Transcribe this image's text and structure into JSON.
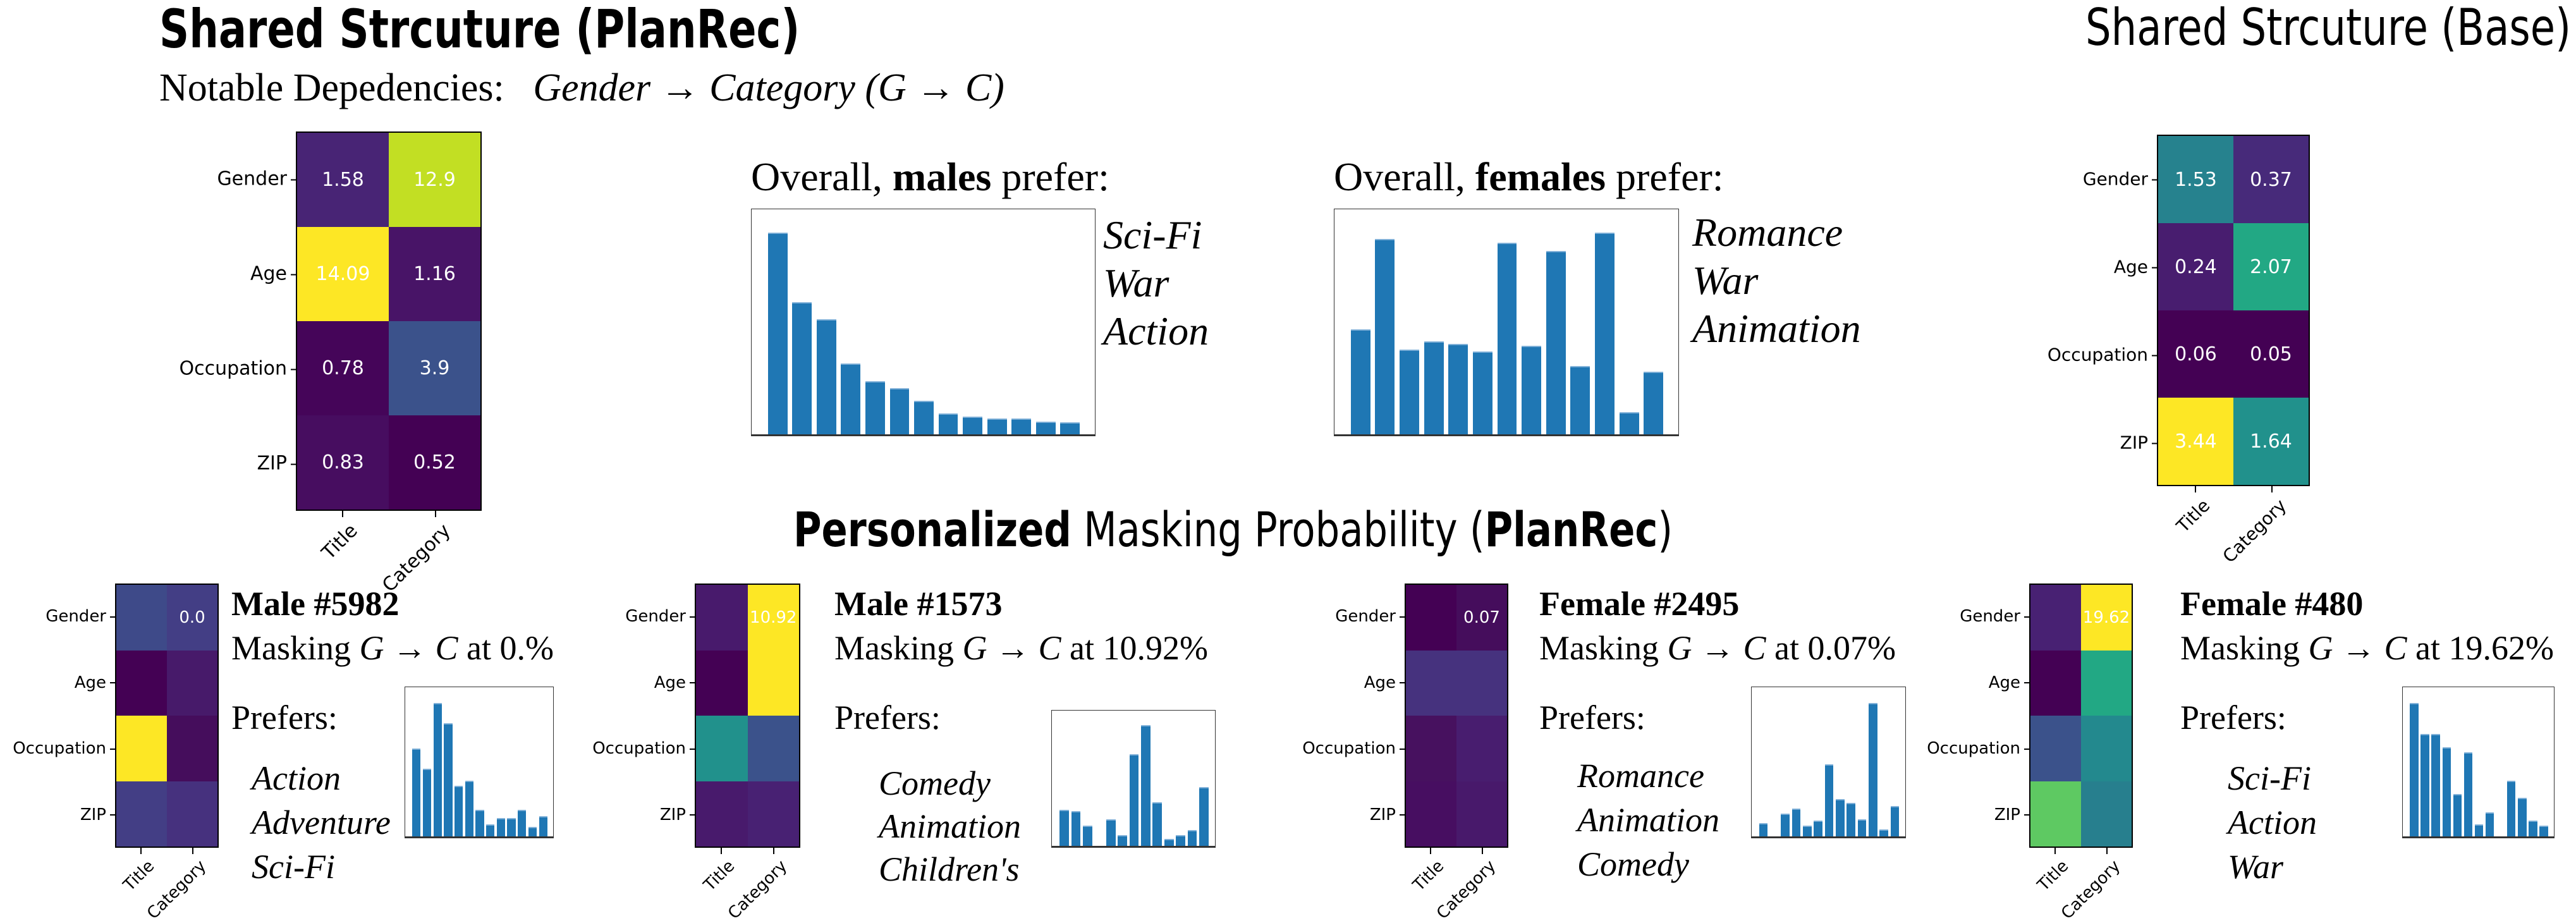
{
  "header": {
    "planrec_title": "Shared Strcuture (PlanRec)",
    "base_title": "Shared Strcuture (Base)",
    "notable_label": "Notable Depedencies:",
    "notable_math": "Gender → Category (G → C)",
    "personalized_bold": "Personalized",
    "personalized_rest": " Masking Probability (",
    "personalized_model": "PlanRec",
    "personalized_close": ")"
  },
  "overall": [
    {
      "prefix": "Overall, ",
      "group": "males",
      "suffix": " prefer:",
      "genres": [
        "Sci-Fi",
        "War",
        "Action"
      ]
    },
    {
      "prefix": "Overall, ",
      "group": "females",
      "suffix": " prefer:",
      "genres": [
        "Romance",
        "War",
        "Animation"
      ]
    }
  ],
  "users": [
    {
      "name": "Male #5982",
      "masking_prefix": "Masking ",
      "masking_math": "G → C",
      "masking_suffix": " at 0.%",
      "prefers_label": "Prefers:",
      "genres": [
        "Action",
        "Adventure",
        "Sci-Fi"
      ]
    },
    {
      "name": "Male #1573",
      "masking_prefix": "Masking ",
      "masking_math": "G → C",
      "masking_suffix": " at 10.92%",
      "prefers_label": "Prefers:",
      "genres": [
        "Comedy",
        "Animation",
        "Children's"
      ]
    },
    {
      "name": "Female #2495",
      "masking_prefix": "Masking ",
      "masking_math": "G → C",
      "masking_suffix": " at 0.07%",
      "prefers_label": "Prefers:",
      "genres": [
        "Romance",
        "Animation",
        "Comedy"
      ]
    },
    {
      "name": "Female #480",
      "masking_prefix": "Masking ",
      "masking_math": "G → C",
      "masking_suffix": " at 19.62%",
      "prefers_label": "Prefers:",
      "genres": [
        "Sci-Fi",
        "Action",
        "War"
      ]
    }
  ],
  "chart_data": [
    {
      "id": "planrec-shared",
      "type": "heatmap",
      "colormap": "viridis",
      "rows": [
        "Gender",
        "Age",
        "Occupation",
        "ZIP"
      ],
      "cols": [
        "Title",
        "Category"
      ],
      "values": [
        [
          "1.58",
          "12.9"
        ],
        [
          "14.09",
          "1.16"
        ],
        [
          "0.78",
          "3.9"
        ],
        [
          "0.83",
          "0.52"
        ]
      ],
      "colors": [
        [
          "#482475",
          "#c2df23"
        ],
        [
          "#fde725",
          "#481467"
        ],
        [
          "#450559",
          "#3b528b"
        ],
        [
          "#470d60",
          "#440154"
        ]
      ]
    },
    {
      "id": "base-shared",
      "type": "heatmap",
      "colormap": "viridis",
      "rows": [
        "Gender",
        "Age",
        "Occupation",
        "ZIP"
      ],
      "cols": [
        "Title",
        "Category"
      ],
      "values": [
        [
          "1.53",
          "0.37"
        ],
        [
          "0.24",
          "2.07"
        ],
        [
          "0.06",
          "0.05"
        ],
        [
          "3.44",
          "1.64"
        ]
      ],
      "colors": [
        [
          "#26828e",
          "#472a7a"
        ],
        [
          "#481d6f",
          "#22a884"
        ],
        [
          "#440154",
          "#440154"
        ],
        [
          "#fde725",
          "#21918c"
        ]
      ]
    },
    {
      "id": "males-overall",
      "type": "bar",
      "color": "#1f77b4",
      "scale": "relative",
      "values": [
        1.0,
        0.655,
        0.57,
        0.353,
        0.265,
        0.23,
        0.167,
        0.104,
        0.089,
        0.08,
        0.08,
        0.063,
        0.06
      ]
    },
    {
      "id": "females-overall",
      "type": "bar",
      "color": "#1f77b4",
      "scale": "relative",
      "values": [
        0.52,
        0.97,
        0.42,
        0.46,
        0.45,
        0.41,
        0.95,
        0.44,
        0.91,
        0.34,
        1.0,
        0.11,
        0.31
      ]
    },
    {
      "id": "male-5982-mask",
      "type": "heatmap",
      "colormap": "viridis",
      "rows": [
        "Gender",
        "Age",
        "Occupation",
        "ZIP"
      ],
      "cols": [
        "Title",
        "Category"
      ],
      "values": [
        [
          "",
          "0.0"
        ],
        [
          "",
          ""
        ],
        [
          "",
          ""
        ],
        [
          "",
          ""
        ]
      ],
      "colors": [
        [
          "#3e4a89",
          "#433e85"
        ],
        [
          "#440154",
          "#471a6a"
        ],
        [
          "#fde725",
          "#450d5c"
        ],
        [
          "#433e85",
          "#46317e"
        ]
      ]
    },
    {
      "id": "male-1573-mask",
      "type": "heatmap",
      "colormap": "viridis",
      "rows": [
        "Gender",
        "Age",
        "Occupation",
        "ZIP"
      ],
      "cols": [
        "Title",
        "Category"
      ],
      "values": [
        [
          "",
          "10.92"
        ],
        [
          "",
          ""
        ],
        [
          "",
          ""
        ],
        [
          "",
          ""
        ]
      ],
      "colors": [
        [
          "#481a6c",
          "#fde725"
        ],
        [
          "#440154",
          "#fde725"
        ],
        [
          "#21918c",
          "#3b528b"
        ],
        [
          "#481a6c",
          "#482173"
        ]
      ]
    },
    {
      "id": "female-2495-mask",
      "type": "heatmap",
      "colormap": "viridis",
      "rows": [
        "Gender",
        "Age",
        "Occupation",
        "ZIP"
      ],
      "cols": [
        "Title",
        "Category"
      ],
      "values": [
        [
          "",
          "0.07"
        ],
        [
          "",
          ""
        ],
        [
          "",
          ""
        ],
        [
          "",
          ""
        ]
      ],
      "colors": [
        [
          "#440154",
          "#450d5c"
        ],
        [
          "#46327e",
          "#46327e"
        ],
        [
          "#47115f",
          "#481d6f"
        ],
        [
          "#470e61",
          "#48196b"
        ]
      ]
    },
    {
      "id": "female-480-mask",
      "type": "heatmap",
      "colormap": "viridis",
      "rows": [
        "Gender",
        "Age",
        "Occupation",
        "ZIP"
      ],
      "cols": [
        "Title",
        "Category"
      ],
      "values": [
        [
          "",
          "19.62"
        ],
        [
          "",
          ""
        ],
        [
          "",
          ""
        ],
        [
          "",
          ""
        ]
      ],
      "colors": [
        [
          "#482173",
          "#fde725"
        ],
        [
          "#440154",
          "#22a884"
        ],
        [
          "#3b528b",
          "#23898e"
        ],
        [
          "#5ec962",
          "#277f8e"
        ]
      ]
    },
    {
      "id": "male-5982-prefs",
      "type": "bar",
      "color": "#1f77b4",
      "scale": "relative",
      "values": [
        0.66,
        0.51,
        1.0,
        0.85,
        0.38,
        0.42,
        0.2,
        0.09,
        0.14,
        0.14,
        0.2,
        0.07,
        0.15
      ]
    },
    {
      "id": "male-1573-prefs",
      "type": "bar",
      "color": "#1f77b4",
      "scale": "relative",
      "values": [
        0.3,
        0.29,
        0.17,
        0,
        0.22,
        0.09,
        0.76,
        1.0,
        0.36,
        0.06,
        0.09,
        0.13,
        0.49
      ]
    },
    {
      "id": "female-2495-prefs",
      "type": "bar",
      "color": "#1f77b4",
      "scale": "relative",
      "values": [
        0.1,
        0,
        0.17,
        0.21,
        0.08,
        0.12,
        0.54,
        0.28,
        0.25,
        0.13,
        1.0,
        0.05,
        0.23
      ]
    },
    {
      "id": "female-480-prefs",
      "type": "bar",
      "color": "#1f77b4",
      "scale": "relative",
      "values": [
        1.0,
        0.77,
        0.77,
        0.67,
        0.32,
        0.63,
        0.09,
        0.18,
        0,
        0.42,
        0.29,
        0.12,
        0.08
      ]
    }
  ]
}
